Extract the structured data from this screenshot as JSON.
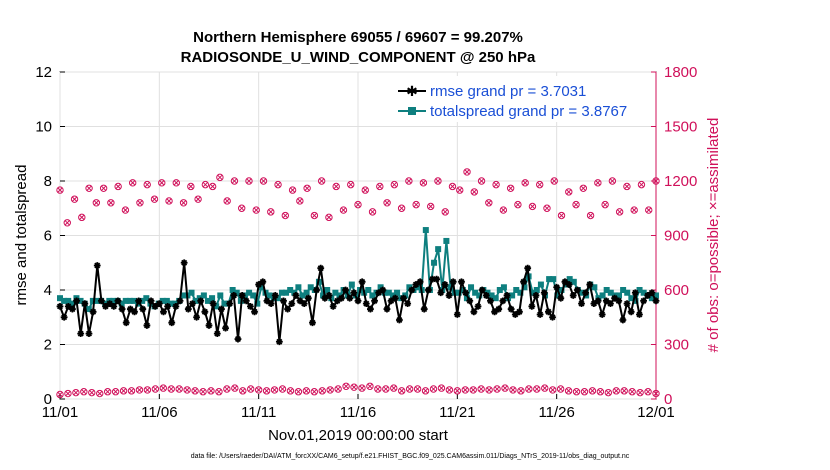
{
  "chart_data": {
    "type": "line",
    "title_line1": "Northern Hemisphere 69055 / 69607 = 99.207%",
    "title_line2": "RADIOSONDE_U_WIND_COMPONENT @ 250 hPa",
    "xlabel": "Nov.01,2019 00:00:00 start",
    "ylabel": "rmse and totalspread",
    "ylabel_right": "# of obs: o=possible; ×=assimilated",
    "xlim": [
      0,
      30
    ],
    "ylim": [
      0,
      12
    ],
    "ylim_right": [
      0,
      1800
    ],
    "x_ticks": [
      0,
      5,
      10,
      15,
      20,
      25,
      30
    ],
    "x_tick_labels": [
      "11/01",
      "11/06",
      "11/11",
      "11/16",
      "11/21",
      "11/26",
      "12/01"
    ],
    "y_ticks": [
      0,
      2,
      4,
      6,
      8,
      10,
      12
    ],
    "y_tick_labels": [
      "0",
      "2",
      "4",
      "6",
      "8",
      "10",
      "12"
    ],
    "y_right_ticks": [
      0,
      300,
      600,
      900,
      1200,
      1500,
      1800
    ],
    "y_right_tick_labels": [
      "0",
      "300",
      "600",
      "900",
      "1200",
      "1500",
      "1800"
    ],
    "footnote": "data file: /Users/raeder/DAI/ATM_forcXX/CAM6_setup/f.e21.FHIST_BGC.f09_025.CAM6assim.011/Diags_NTrS_2019-11/obs_diag_output.nc",
    "colors": {
      "rmse": "#000000",
      "spread": "#0e7f7f",
      "obs": "#d0105a",
      "legend_text": "#1a4fd6"
    },
    "series": [
      {
        "name": "rmse",
        "legend": "rmse grand pr = 3.7031",
        "values": [
          3.4,
          3.0,
          3.4,
          3.3,
          3.6,
          2.4,
          3.5,
          2.4,
          3.2,
          4.9,
          3.6,
          3.4,
          3.5,
          3.4,
          3.6,
          3.3,
          2.8,
          3.3,
          3.2,
          3.6,
          3.3,
          2.7,
          3.6,
          3.4,
          3.5,
          3.2,
          3.4,
          2.8,
          3.4,
          3.6,
          5.0,
          3.3,
          3.5,
          3.0,
          3.6,
          3.2,
          2.7,
          3.5,
          2.4,
          3.3,
          2.6,
          3.5,
          3.8,
          2.2,
          3.8,
          3.6,
          3.4,
          3.2,
          4.2,
          4.3,
          3.6,
          3.5,
          3.8,
          2.1,
          3.6,
          3.3,
          3.5,
          3.8,
          3.6,
          3.5,
          3.7,
          2.8,
          4.0,
          4.8,
          3.7,
          3.8,
          3.4,
          3.6,
          3.7,
          4.0,
          3.7,
          3.9,
          3.6,
          4.3,
          3.5,
          3.3,
          3.6,
          3.9,
          4.0,
          3.3,
          3.6,
          3.7,
          2.9,
          3.7,
          3.5,
          4.0,
          4.2,
          4.3,
          3.3,
          4.0,
          4.4,
          4.4,
          3.9,
          4.2,
          3.8,
          4.3,
          3.1,
          4.3,
          3.9,
          3.6,
          3.2,
          3.4,
          4.0,
          3.8,
          3.6,
          3.2,
          3.3,
          3.6,
          3.8,
          3.3,
          3.1,
          3.2,
          4.3,
          4.8,
          3.4,
          3.8,
          3.1,
          3.9,
          3.2,
          3.0,
          4.1,
          3.7,
          4.3,
          4.2,
          3.8,
          4.0,
          3.5,
          3.9,
          4.2,
          3.5,
          3.6,
          3.1,
          3.6,
          3.5,
          3.7,
          3.6,
          2.9,
          3.5,
          3.2,
          3.9,
          3.1,
          3.6,
          3.8,
          3.9,
          3.6
        ]
      },
      {
        "name": "totalspread",
        "legend": "totalspread grand pr = 3.8767",
        "values": [
          3.7,
          3.6,
          3.6,
          3.5,
          3.7,
          3.6,
          3.5,
          3.3,
          3.6,
          3.6,
          3.6,
          3.5,
          3.6,
          3.6,
          3.6,
          3.5,
          3.6,
          3.6,
          3.6,
          3.5,
          3.6,
          3.7,
          3.5,
          3.4,
          3.5,
          3.6,
          3.6,
          3.5,
          3.5,
          3.6,
          3.8,
          3.8,
          3.9,
          3.6,
          3.7,
          3.8,
          3.6,
          3.7,
          3.4,
          3.8,
          3.5,
          3.5,
          4.0,
          3.9,
          3.6,
          3.8,
          3.9,
          3.8,
          3.5,
          4.1,
          3.9,
          3.8,
          3.7,
          3.7,
          3.9,
          3.9,
          4.0,
          3.9,
          4.1,
          3.8,
          3.9,
          4.1,
          4.0,
          4.3,
          3.8,
          4.0,
          3.7,
          3.9,
          3.8,
          4.0,
          3.8,
          4.2,
          3.8,
          4.0,
          3.9,
          4.0,
          3.8,
          3.9,
          4.1,
          3.9,
          3.9,
          3.8,
          3.9,
          3.7,
          3.8,
          4.1,
          4.0,
          4.1,
          4.0,
          6.2,
          4.0,
          5.0,
          5.5,
          4.0,
          5.8,
          4.1,
          3.9,
          3.9,
          4.0,
          3.7,
          4.1,
          3.9,
          3.8,
          4.0,
          3.9,
          3.8,
          3.7,
          4.0,
          4.1,
          3.7,
          3.8,
          4.0,
          3.9,
          4.1,
          4.5,
          3.9,
          4.0,
          4.2,
          3.8,
          4.4,
          4.4,
          3.8,
          4.0,
          4.2,
          4.4,
          4.3,
          4.0,
          3.9,
          3.8,
          4.2,
          4.1,
          3.7,
          3.8,
          4.0,
          3.9,
          3.8,
          3.8,
          4.0,
          3.9,
          3.7,
          3.6,
          4.0,
          3.9,
          3.8,
          3.7,
          3.8
        ]
      }
    ],
    "obs_possible": [
      1150,
      970,
      1100,
      1000,
      1160,
      1080,
      1160,
      1080,
      1170,
      1040,
      1190,
      1080,
      1180,
      1100,
      1190,
      1090,
      1190,
      1080,
      1170,
      1100,
      1180,
      1170,
      1220,
      1090,
      1200,
      1050,
      1200,
      1040,
      1200,
      1030,
      1180,
      1010,
      1150,
      1090,
      1160,
      1010,
      1200,
      1000,
      1170,
      1040,
      1180,
      1070,
      1150,
      1030,
      1170,
      1080,
      1180,
      1050,
      1200,
      1070,
      1190,
      1060,
      1200,
      1030,
      1170,
      1150,
      1250,
      1140,
      1200,
      1080,
      1180,
      1040,
      1160,
      1070,
      1190,
      1060,
      1180,
      1050,
      1200,
      1010,
      1140,
      1070,
      1160,
      1010,
      1190,
      1070,
      1200,
      1030,
      1170,
      1040,
      1180,
      1040,
      1200
    ],
    "obs_assimilated": [
      1150,
      970,
      1100,
      1000,
      1160,
      1080,
      1160,
      1080,
      1170,
      1040,
      1190,
      1080,
      1180,
      1100,
      1190,
      1090,
      1190,
      1080,
      1170,
      1100,
      1180,
      1170,
      1220,
      1090,
      1200,
      1050,
      1200,
      1040,
      1200,
      1030,
      1180,
      1010,
      1150,
      1090,
      1160,
      1010,
      1200,
      1000,
      1170,
      1040,
      1180,
      1070,
      1150,
      1030,
      1170,
      1080,
      1180,
      1050,
      1200,
      1070,
      1190,
      1060,
      1200,
      1030,
      1170,
      1150,
      1250,
      1140,
      1200,
      1080,
      1180,
      1040,
      1160,
      1070,
      1190,
      1060,
      1180,
      1050,
      1200,
      1010,
      1140,
      1070,
      1160,
      1010,
      1190,
      1070,
      1200,
      1030,
      1170,
      1040,
      1180,
      1040,
      1200
    ],
    "obs_low_possible": [
      25,
      30,
      35,
      40,
      35,
      30,
      40,
      40,
      45,
      45,
      50,
      50,
      55,
      60,
      55,
      55,
      50,
      45,
      40,
      45,
      40,
      55,
      60,
      45,
      55,
      50,
      45,
      50,
      55,
      45,
      40,
      45,
      40,
      45,
      50,
      55,
      70,
      65,
      60,
      70,
      55,
      55,
      60,
      45,
      55,
      55,
      45,
      55,
      60,
      50,
      45,
      50,
      50,
      55,
      50,
      55,
      60,
      50,
      45,
      55,
      55,
      60,
      50,
      55,
      45,
      40,
      40,
      45,
      40,
      35,
      45,
      45,
      40,
      35,
      40,
      30
    ],
    "obs_low_assimilated": [
      25,
      30,
      35,
      40,
      35,
      30,
      40,
      40,
      45,
      45,
      50,
      50,
      55,
      60,
      55,
      55,
      50,
      45,
      40,
      45,
      40,
      55,
      60,
      45,
      55,
      50,
      45,
      50,
      55,
      45,
      40,
      45,
      40,
      45,
      50,
      55,
      70,
      65,
      60,
      70,
      55,
      55,
      60,
      45,
      55,
      55,
      45,
      55,
      60,
      50,
      45,
      50,
      50,
      55,
      50,
      55,
      60,
      50,
      45,
      55,
      55,
      60,
      50,
      55,
      45,
      40,
      40,
      45,
      40,
      35,
      45,
      45,
      40,
      35,
      40,
      30
    ]
  }
}
